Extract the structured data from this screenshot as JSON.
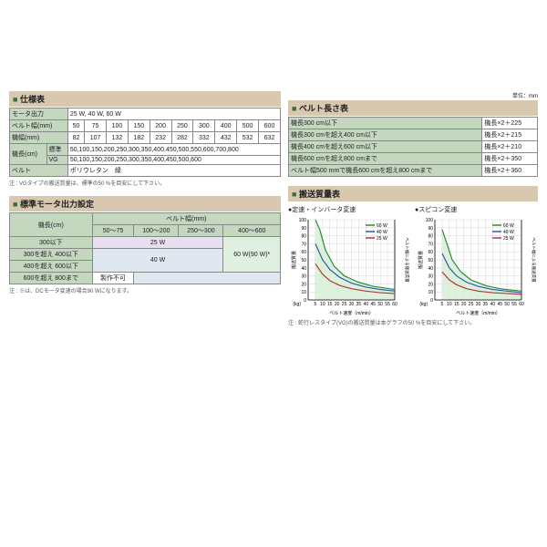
{
  "spec": {
    "title": "仕様表",
    "rows": [
      {
        "h": "モータ出力",
        "v": "25 W, 40 W, 60 W",
        "span": 10
      },
      {
        "h": "ベルト幅(mm)",
        "cells": [
          "50",
          "75",
          "100",
          "150",
          "200",
          "250",
          "300",
          "400",
          "500",
          "600"
        ]
      },
      {
        "h": "機幅(mm)",
        "cells": [
          "82",
          "107",
          "132",
          "182",
          "232",
          "282",
          "332",
          "432",
          "532",
          "632"
        ]
      },
      {
        "h": "機長(cm)",
        "sub": "標準",
        "v": "50,100,150,200,250,300,350,400,450,500,550,600,700,800",
        "span": 10
      },
      {
        "h": "",
        "sub": "VG",
        "v": "50,100,150,200,250,300,350,400,450,500,600",
        "span": 10
      },
      {
        "h": "ベルト",
        "v": "ポリウレタン　緑",
        "span": 10
      }
    ],
    "note": "注 : VGタイプの搬送質量は、標準の50 %を目安にして下さい。"
  },
  "belt": {
    "title": "ベルト長さ表",
    "unit": "単位：mm",
    "rows": [
      {
        "l": "機長300 cm以下",
        "r": "機長×2＋225"
      },
      {
        "l": "機長300 cmを超え400 cm以下",
        "r": "機長×2＋215"
      },
      {
        "l": "機長400 cmを超え600 cm以下",
        "r": "機長×2＋210"
      },
      {
        "l": "機長600 cmを超え800 cmまで",
        "r": "機長×2＋350"
      },
      {
        "l": "ベルト幅500 mmで機長600 cmを超え800 cmまで",
        "r": "機長×2＋360"
      }
    ]
  },
  "motor": {
    "title": "標準モータ出力設定",
    "col_hdr": "ベルト幅(mm)",
    "row_hdr": "機長(cm)",
    "cols": [
      "50～75",
      "100～200",
      "250～300",
      "400～600"
    ],
    "rows": [
      "300以下",
      "300を超え 400以下",
      "400を超え 600以下",
      "600を超え 800まで"
    ],
    "w25": "25 W",
    "w40": "40 W",
    "w60": "60 W(90 W)*",
    "na": "製作不可",
    "note": "注 : ※は、DCモータ変速の場合90 Wになります。"
  },
  "charts": {
    "title": "搬送質量表",
    "c1": {
      "title": "定速・インバータ変速"
    },
    "c2": {
      "title": "スピコン変速"
    },
    "ylabel": "搬送質量",
    "yunit": "(kg)",
    "xlabel": "ベルト速度（m/min）",
    "legend": [
      "60 W",
      "40 W",
      "25 W"
    ],
    "leg_colors": [
      "#2a8a3a",
      "#2a5aaa",
      "#b03a3a"
    ],
    "xlim": [
      0,
      60
    ],
    "ylim": [
      0,
      100
    ],
    "xticks": [
      5,
      10,
      15,
      20,
      25,
      30,
      35,
      40,
      45,
      50,
      55,
      60
    ],
    "yticks": [
      0,
      10,
      20,
      30,
      40,
      50,
      60,
      70,
      80,
      90,
      100
    ],
    "fill": "#d5edd5",
    "series1": {
      "l60": [
        [
          5,
          100
        ],
        [
          8,
          88
        ],
        [
          12,
          62
        ],
        [
          18,
          42
        ],
        [
          25,
          30
        ],
        [
          35,
          22
        ],
        [
          45,
          17
        ],
        [
          60,
          13
        ]
      ],
      "l40": [
        [
          5,
          70
        ],
        [
          10,
          50
        ],
        [
          15,
          38
        ],
        [
          22,
          28
        ],
        [
          30,
          21
        ],
        [
          40,
          16
        ],
        [
          50,
          13
        ],
        [
          60,
          11
        ]
      ],
      "l25": [
        [
          5,
          45
        ],
        [
          10,
          32
        ],
        [
          15,
          24
        ],
        [
          22,
          18
        ],
        [
          30,
          14
        ],
        [
          40,
          11
        ],
        [
          50,
          9
        ],
        [
          60,
          8
        ]
      ]
    },
    "series2": {
      "l60": [
        [
          5,
          88
        ],
        [
          8,
          72
        ],
        [
          12,
          50
        ],
        [
          18,
          35
        ],
        [
          25,
          25
        ],
        [
          35,
          18
        ],
        [
          45,
          14
        ],
        [
          60,
          11
        ]
      ],
      "l40": [
        [
          5,
          58
        ],
        [
          10,
          40
        ],
        [
          15,
          30
        ],
        [
          22,
          22
        ],
        [
          30,
          17
        ],
        [
          40,
          13
        ],
        [
          50,
          11
        ],
        [
          60,
          9
        ]
      ],
      "l25": [
        [
          5,
          35
        ],
        [
          10,
          25
        ],
        [
          15,
          19
        ],
        [
          22,
          14
        ],
        [
          30,
          11
        ],
        [
          40,
          9
        ],
        [
          50,
          8
        ],
        [
          60,
          7
        ]
      ]
    },
    "note": "注 : 蛇行レスタイプ(VG)の搬送質量は本グラフの50 %を目安にして下さい。"
  }
}
